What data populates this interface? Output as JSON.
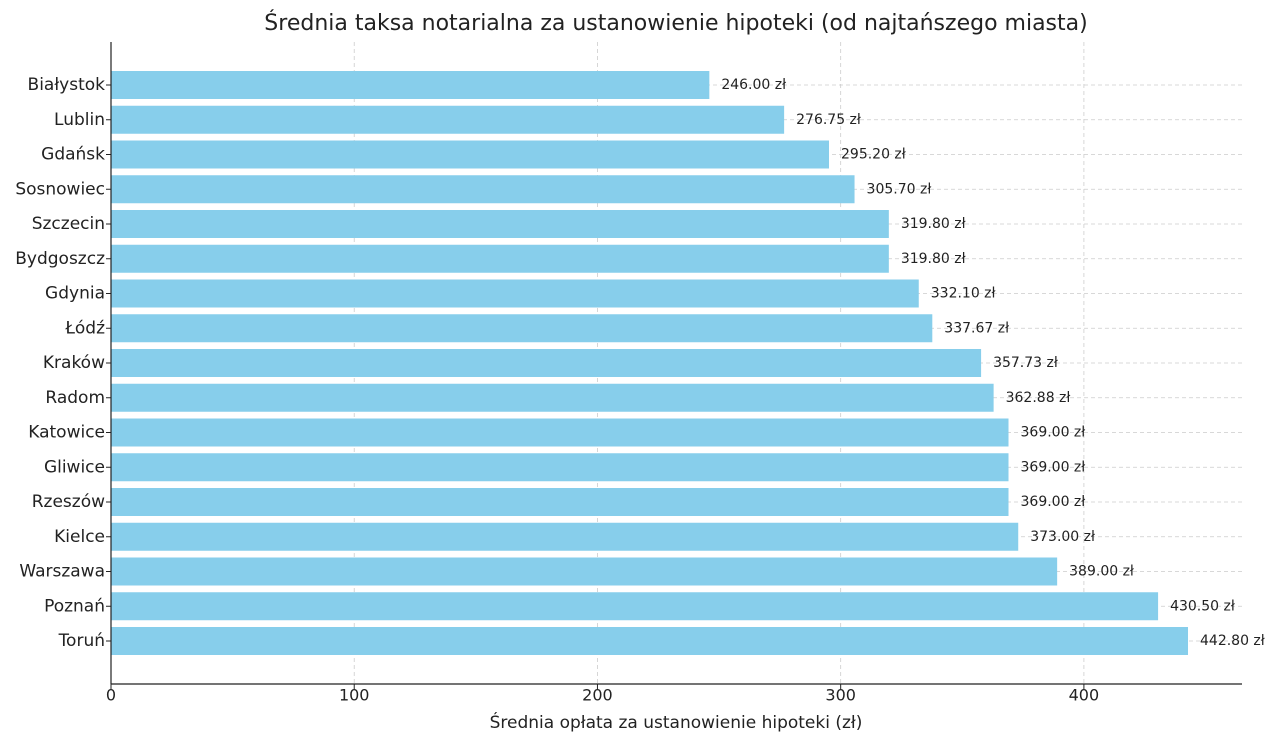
{
  "chart_data": {
    "type": "bar",
    "orientation": "horizontal",
    "title": "Średnia taksa notarialna za ustanowienie hipoteki (od najtańszego miasta)",
    "x_label": "Średnia opłata za ustanowienie hipoteki (zł)",
    "categories": [
      "Białystok",
      "Lublin",
      "Gdańsk",
      "Sosnowiec",
      "Szczecin",
      "Bydgoszcz",
      "Gdynia",
      "Łódź",
      "Kraków",
      "Radom",
      "Katowice",
      "Gliwice",
      "Rzeszów",
      "Kielce",
      "Warszawa",
      "Poznań",
      "Toruń"
    ],
    "values": [
      246.0,
      276.75,
      295.2,
      305.7,
      319.8,
      319.8,
      332.1,
      337.67,
      357.73,
      362.88,
      369.0,
      369.0,
      369.0,
      373.0,
      389.0,
      430.5,
      442.8
    ],
    "value_labels": [
      "246.00 zł",
      "276.75 zł",
      "295.20 zł",
      "305.70 zł",
      "319.80 zł",
      "319.80 zł",
      "332.10 zł",
      "337.67 zł",
      "357.73 zł",
      "362.88 zł",
      "369.00 zł",
      "369.00 zł",
      "369.00 zł",
      "373.00 zł",
      "389.00 zł",
      "430.50 zł",
      "442.80 zł"
    ],
    "color": "#87ceeb",
    "xlim": [
      0,
      465
    ],
    "xticks": [
      0,
      100,
      200,
      300,
      400
    ],
    "grid": true
  }
}
